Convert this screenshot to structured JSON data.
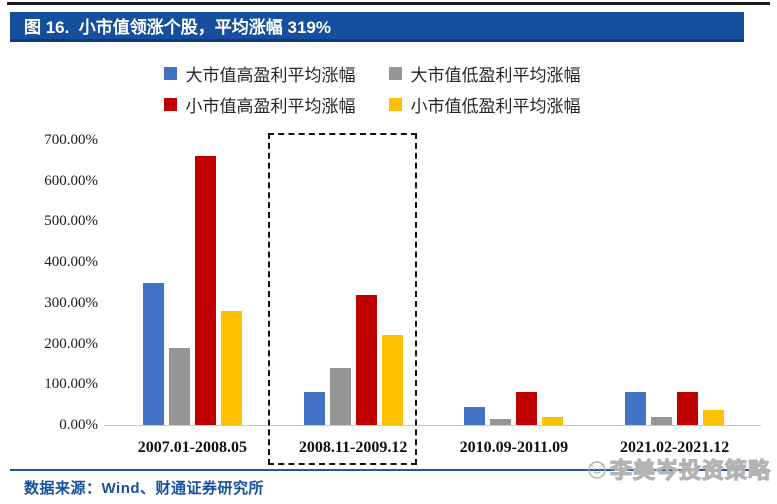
{
  "figure": {
    "title": "图 16.  小市值领涨个股，平均涨幅 319%"
  },
  "legend": {
    "items": [
      {
        "label": "大市值高盈利平均涨幅",
        "color": "#4472C4"
      },
      {
        "label": "大市值低盈利平均涨幅",
        "color": "#969696"
      },
      {
        "label": "小市值高盈利平均涨幅",
        "color": "#C00000"
      },
      {
        "label": "小市值低盈利平均涨幅",
        "color": "#FFC000"
      }
    ]
  },
  "chart_data": {
    "type": "bar",
    "title": "小市值领涨个股，平均涨幅319%",
    "categories": [
      "2007.01-2008.05",
      "2008.11-2009.12",
      "2010.09-2011.09",
      "2021.02-2021.12"
    ],
    "series": [
      {
        "name": "大市值高盈利平均涨幅",
        "color": "#4472C4",
        "values": [
          350,
          80,
          44,
          80
        ]
      },
      {
        "name": "大市值低盈利平均涨幅",
        "color": "#969696",
        "values": [
          190,
          140,
          15,
          20
        ]
      },
      {
        "name": "小市值高盈利平均涨幅",
        "color": "#C00000",
        "values": [
          660,
          319,
          82,
          80
        ]
      },
      {
        "name": "小市值低盈利平均涨幅",
        "color": "#FFC000",
        "values": [
          280,
          222,
          20,
          38
        ]
      }
    ],
    "unit": "percent",
    "ylim": [
      0,
      700
    ],
    "yticks": [
      {
        "value": 700,
        "label": "700.00%"
      },
      {
        "value": 600,
        "label": "600.00%"
      },
      {
        "value": 500,
        "label": "500.00%"
      },
      {
        "value": 400,
        "label": "400.00%"
      },
      {
        "value": 300,
        "label": "300.00%"
      },
      {
        "value": 200,
        "label": "200.00%"
      },
      {
        "value": 100,
        "label": "100.00%"
      },
      {
        "value": 0,
        "label": "0.00%"
      }
    ],
    "grid": false,
    "legend_position": "top",
    "highlighted_category": "2008.11-2009.12"
  },
  "footer": {
    "source": "数据来源：Wind、财通证券研究所",
    "watermark": "李美岑投资策略"
  },
  "colors": {
    "header_bar": "#164F9E",
    "footer_line": "#1F57A5",
    "axis_line": "#C9C9C9",
    "highlight_border": "#111111"
  }
}
